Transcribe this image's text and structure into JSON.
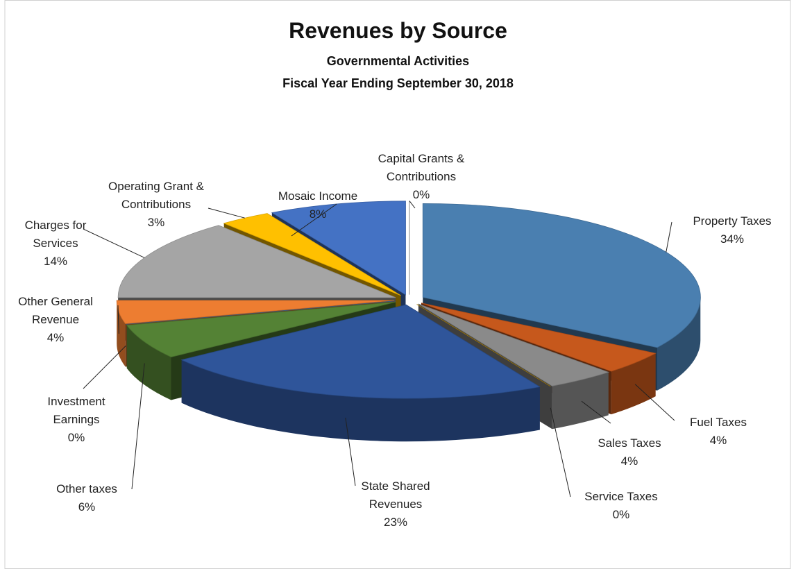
{
  "chart_data": {
    "type": "pie",
    "title": "Revenues by Source",
    "subtitle": [
      "Governmental Activities",
      "Fiscal Year Ending September 30, 2018"
    ],
    "categories": [
      "Property Taxes",
      "Fuel Taxes",
      "Sales Taxes",
      "Service Taxes",
      "State Shared Revenues",
      "Other taxes",
      "Investment Earnings",
      "Other General Revenue",
      "Charges for Services",
      "Operating Grant & Contributions",
      "Mosaic Income",
      "Capital Grants & Contributions"
    ],
    "values": [
      34,
      4,
      4,
      0,
      23,
      6,
      0,
      4,
      14,
      3,
      8,
      0
    ],
    "value_labels": [
      "34%",
      "4%",
      "4%",
      "0%",
      "23%",
      "6%",
      "0%",
      "4%",
      "14%",
      "3%",
      "8%",
      "0%"
    ],
    "colors": [
      "#4a7fb0",
      "#c6581c",
      "#8a8a8a",
      "#c08f00",
      "#2f559a",
      "#548235",
      "#41719c",
      "#ed7d31",
      "#a5a5a5",
      "#ffc000",
      "#4472c4",
      "#7f7f7f"
    ]
  }
}
